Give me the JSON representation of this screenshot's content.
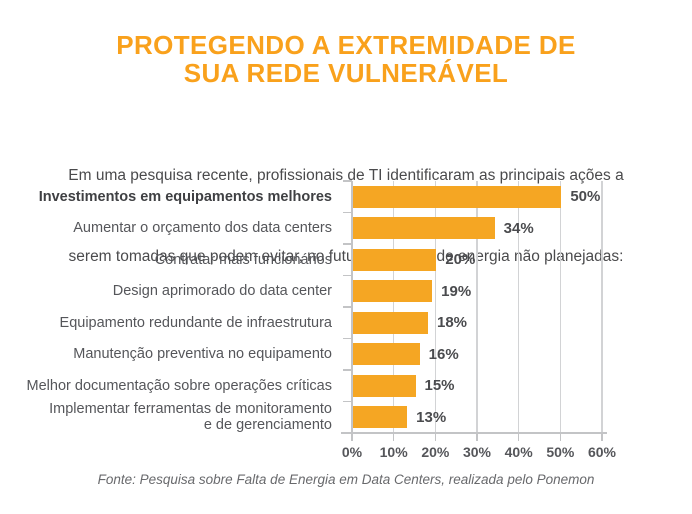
{
  "title": {
    "line1": "PROTEGENDO A EXTREMIDADE DE",
    "line2": "SUA REDE VULNERÁVEL"
  },
  "subtitle": {
    "line1": "Em uma pesquisa recente, profissionais de TI identificaram as principais ações a",
    "line2": "serem tomadas que podem evitar, no futuro,  quedas de energia não planejadas:"
  },
  "chart_data": {
    "type": "bar",
    "orientation": "horizontal",
    "title": "PROTEGENDO A EXTREMIDADE DE SUA REDE VULNERÁVEL",
    "categories": [
      "Investimentos em equipamentos melhores",
      "Aumentar o orçamento dos data centers",
      "Contratar mais funcionários",
      "Design aprimorado do data center",
      "Equipamento redundante de infraestrutura",
      "Manutenção preventiva no equipamento",
      "Melhor documentação sobre operações críticas",
      "Implementar ferramentas de monitoramento\ne de gerenciamento"
    ],
    "values": [
      50,
      34,
      20,
      19,
      18,
      16,
      15,
      13
    ],
    "value_labels": [
      "50%",
      "34%",
      "20%",
      "19%",
      "18%",
      "16%",
      "15%",
      "13%"
    ],
    "bold_categories": [
      0
    ],
    "xlim": [
      0,
      60
    ],
    "x_tick_labels": [
      "0%",
      "10%",
      "20%",
      "30%",
      "40%",
      "50%",
      "60%"
    ],
    "grid": true,
    "legend": false,
    "bar_color": "#F5A623"
  },
  "footer": {
    "source": "Fonte: Pesquisa sobre Falta de Energia em Data Centers, realizada pelo Ponemon"
  },
  "colors": {
    "title_orange": "#F9A11C",
    "bar_orange": "#F5A623",
    "gridline_gray": "#D2D3D5",
    "axis_gray": "#C3C4C6",
    "label_gray": "#55565A",
    "label_bold_dark": "#3F4043",
    "value_dark": "#4A4B4E",
    "footer_gray": "#68696C",
    "background": "#FFFFFF"
  }
}
